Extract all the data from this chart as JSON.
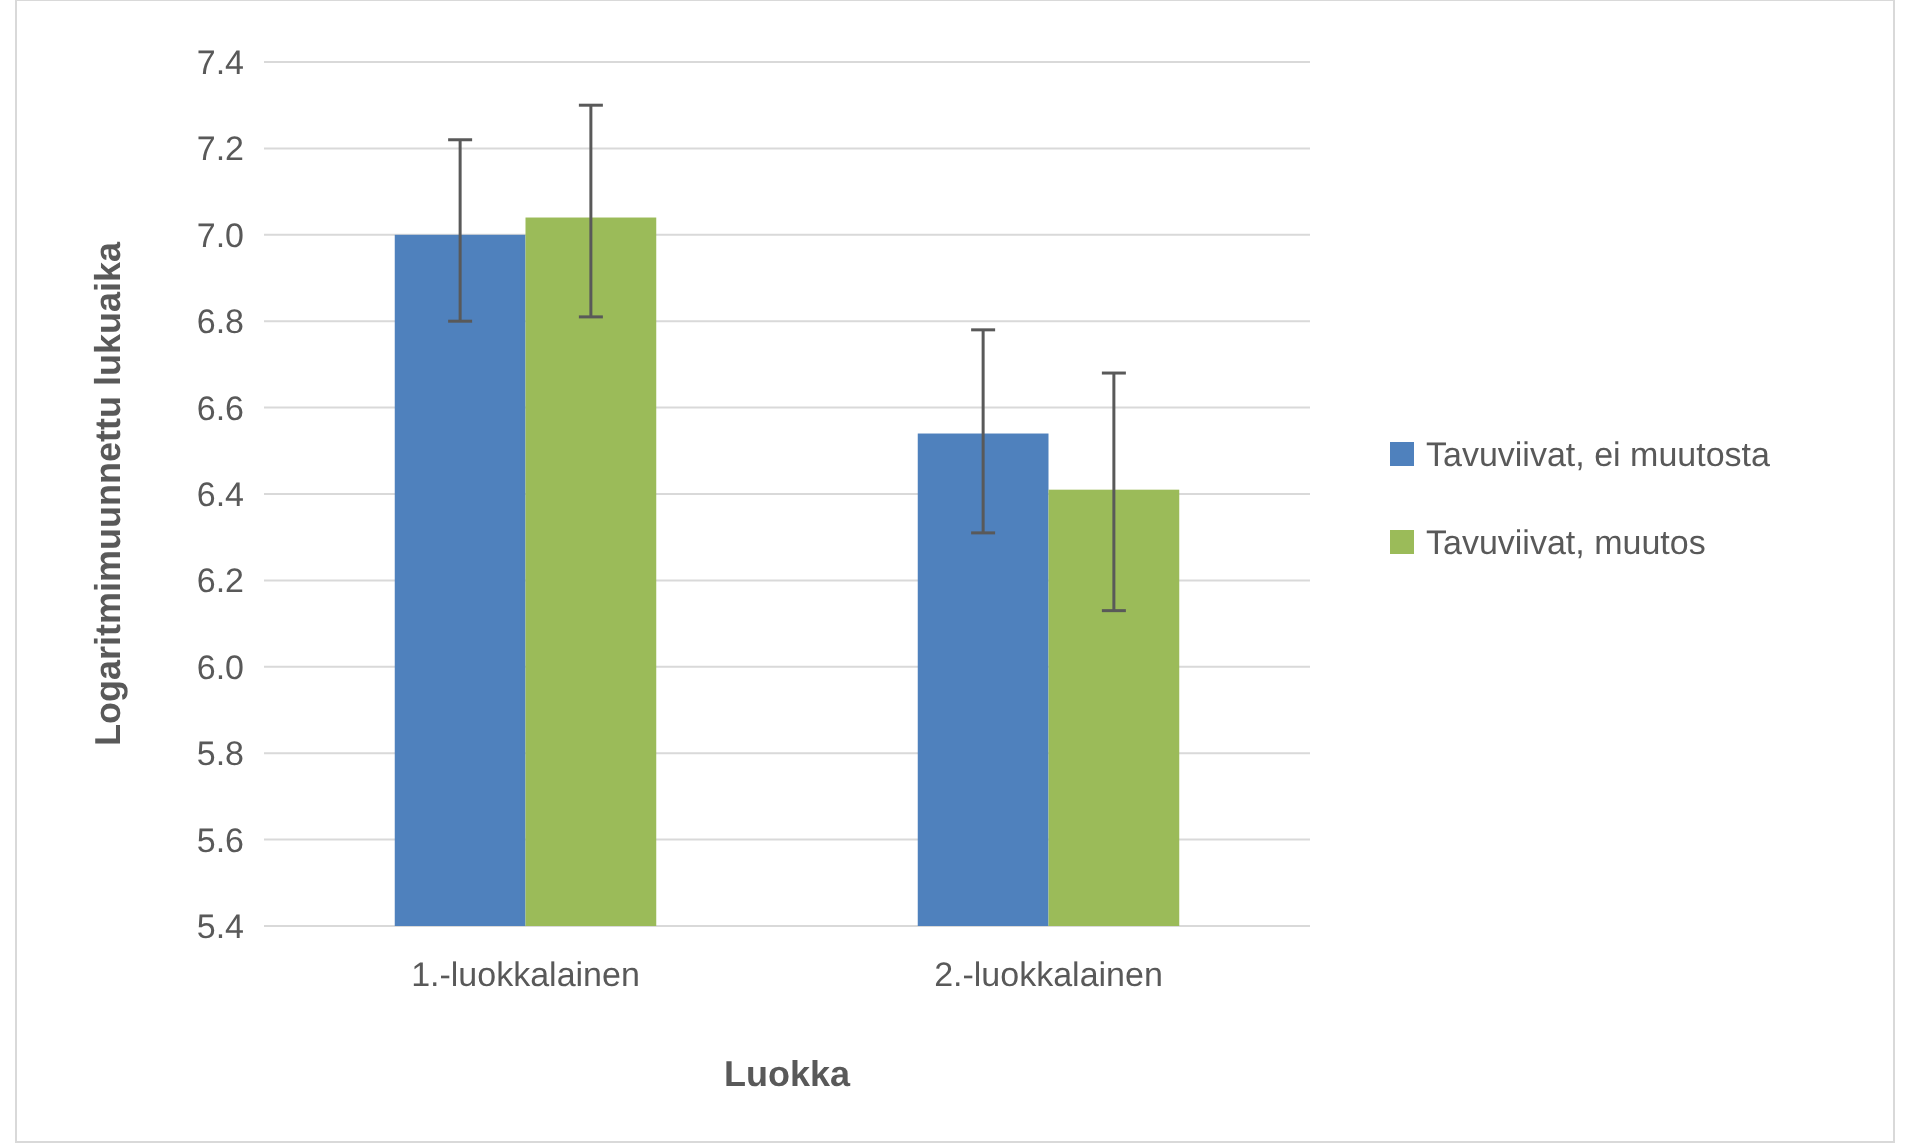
{
  "chart_data": {
    "type": "bar",
    "xlabel": "Luokka",
    "ylabel": "Logaritmimuunnettu lukuaika",
    "categories": [
      "1.-luokkalainen",
      "2.-luokkalainen"
    ],
    "series": [
      {
        "name": "Tavuviivat, ei muutosta",
        "color": "#4f81bd",
        "values": [
          7.0,
          6.54
        ],
        "errors": [
          [
            6.8,
            7.22
          ],
          [
            6.31,
            6.78
          ]
        ]
      },
      {
        "name": "Tavuviivat, muutos",
        "color": "#9bbb59",
        "values": [
          7.04,
          6.41
        ],
        "errors": [
          [
            6.81,
            7.3
          ],
          [
            6.13,
            6.68
          ]
        ]
      }
    ],
    "ylim": [
      5.4,
      7.4
    ],
    "yticks": [
      {
        "value": 5.4,
        "label": "5.4"
      },
      {
        "value": 5.6,
        "label": "5.6"
      },
      {
        "value": 5.8,
        "label": "5.8"
      },
      {
        "value": 6.0,
        "label": "6.0"
      },
      {
        "value": 6.2,
        "label": "6.2"
      },
      {
        "value": 6.4,
        "label": "6.4"
      },
      {
        "value": 6.6,
        "label": "6.6"
      },
      {
        "value": 6.8,
        "label": "6.8"
      },
      {
        "value": 7.0,
        "label": "7.0"
      },
      {
        "value": 7.2,
        "label": "7.2"
      },
      {
        "value": 7.4,
        "label": "7.4"
      }
    ],
    "grid": "y",
    "legend": "right"
  }
}
